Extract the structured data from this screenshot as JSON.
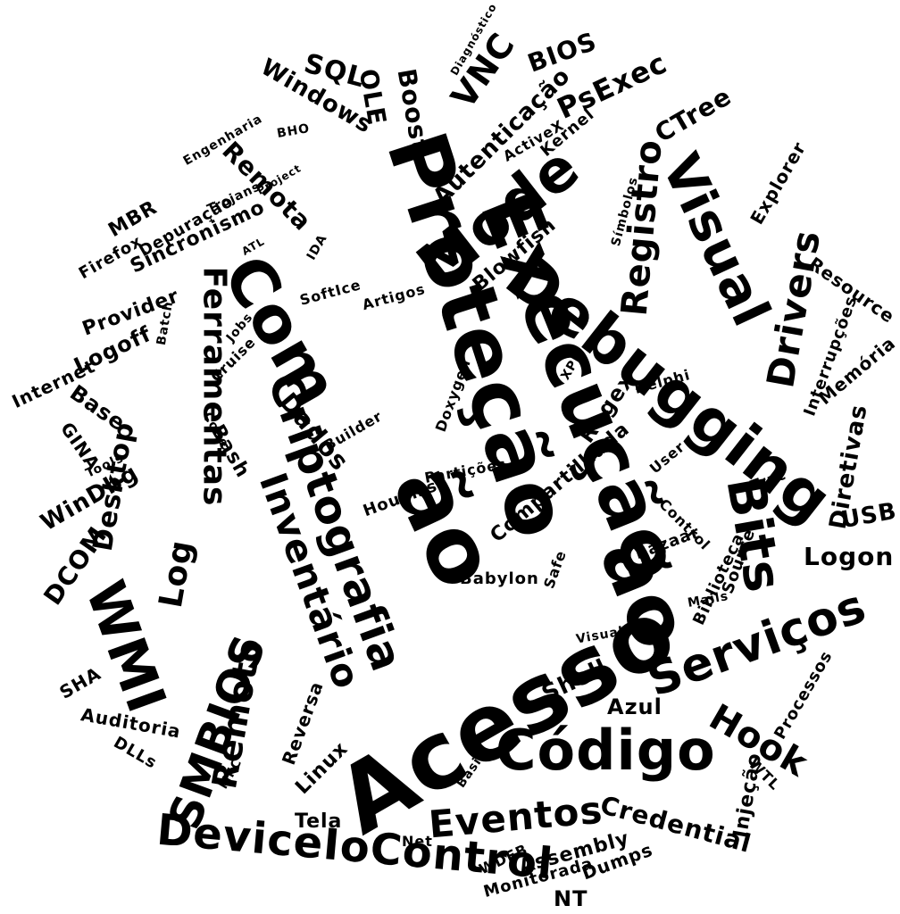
{
  "colors": {
    "background": "#ffffff",
    "text": "#000000"
  },
  "words": [
    {
      "text": "Acesso",
      "size": 104,
      "angle": -30
    },
    {
      "text": "Proteção",
      "size": 92,
      "angle": 72
    },
    {
      "text": "Execução",
      "size": 86,
      "angle": 68
    },
    {
      "text": "Debugging",
      "size": 70,
      "angle": 38
    },
    {
      "text": "ão",
      "size": 100,
      "angle": 65
    },
    {
      "text": "ão",
      "size": 90,
      "angle": 68
    },
    {
      "text": "Código",
      "size": 62,
      "angle": 0
    },
    {
      "text": "Com",
      "size": 72,
      "angle": 60
    },
    {
      "text": "Criptografia",
      "size": 50,
      "angle": 70
    },
    {
      "text": "Mode",
      "size": 66,
      "angle": -38
    },
    {
      "text": "Visual",
      "size": 58,
      "angle": 65
    },
    {
      "text": "Serviços",
      "size": 52,
      "angle": -20
    },
    {
      "text": "DeviceIoControl",
      "size": 48,
      "angle": 5
    },
    {
      "text": "WMI",
      "size": 60,
      "angle": 70
    },
    {
      "text": "Bits",
      "size": 58,
      "angle": 80
    },
    {
      "text": "Inventário",
      "size": 42,
      "angle": 70
    },
    {
      "text": "Ferramentas",
      "size": 36,
      "angle": 90
    },
    {
      "text": "SMBIOS",
      "size": 50,
      "angle": -70
    },
    {
      "text": "Drivers",
      "size": 42,
      "angle": -80
    },
    {
      "text": "Registro",
      "size": 40,
      "angle": -85
    },
    {
      "text": "Eventos",
      "size": 42,
      "angle": -5
    },
    {
      "text": "Hook",
      "size": 40,
      "angle": 30
    },
    {
      "text": "Remoto",
      "size": 38,
      "angle": -80
    },
    {
      "text": "Desktop",
      "size": 30,
      "angle": -80
    },
    {
      "text": "Log",
      "size": 36,
      "angle": -80
    },
    {
      "text": "Remota",
      "size": 28,
      "angle": 45
    },
    {
      "text": "Logon",
      "size": 28,
      "angle": 0
    },
    {
      "text": "PsExec",
      "size": 32,
      "angle": -25
    },
    {
      "text": "VNC",
      "size": 38,
      "angle": -55
    },
    {
      "text": "Credential",
      "size": 28,
      "angle": 15
    },
    {
      "text": "Dados",
      "size": 28,
      "angle": 50
    },
    {
      "text": "CTree",
      "size": 28,
      "angle": -30
    },
    {
      "text": "Diretivas",
      "size": 26,
      "angle": -80
    },
    {
      "text": "Autenticação",
      "size": 26,
      "angle": -45
    },
    {
      "text": "Blowfish",
      "size": 22,
      "angle": -40
    },
    {
      "text": "Shell",
      "size": 26,
      "angle": -25
    },
    {
      "text": "Azul",
      "size": 24,
      "angle": 0
    },
    {
      "text": "Compartilhada",
      "size": 22,
      "angle": -40
    },
    {
      "text": "Regex",
      "size": 24,
      "angle": -55
    },
    {
      "text": "Bash",
      "size": 22,
      "angle": 60
    },
    {
      "text": "DCOM",
      "size": 28,
      "angle": -55
    },
    {
      "text": "WinDbg",
      "size": 26,
      "angle": -30
    },
    {
      "text": "SQL",
      "size": 30,
      "angle": 15
    },
    {
      "text": "BIOS",
      "size": 28,
      "angle": -20
    },
    {
      "text": "Windows",
      "size": 26,
      "angle": 30
    },
    {
      "text": "Boost",
      "size": 28,
      "angle": 80
    },
    {
      "text": "OLE",
      "size": 28,
      "angle": 80
    },
    {
      "text": "Sincronismo",
      "size": 22,
      "angle": -25
    },
    {
      "text": "Depuração",
      "size": 18,
      "angle": -30
    },
    {
      "text": "MBR",
      "size": 22,
      "angle": -30
    },
    {
      "text": "Firefox",
      "size": 18,
      "angle": -30
    },
    {
      "text": "Provider",
      "size": 22,
      "angle": -20
    },
    {
      "text": "Logoff",
      "size": 24,
      "angle": -25
    },
    {
      "text": "Internet",
      "size": 20,
      "angle": -25
    },
    {
      "text": "Base",
      "size": 24,
      "angle": 35
    },
    {
      "text": "GINA",
      "size": 20,
      "angle": 55
    },
    {
      "text": "USB",
      "size": 26,
      "angle": -10
    },
    {
      "text": "Memória",
      "size": 20,
      "angle": -40
    },
    {
      "text": "Interrupções",
      "size": 18,
      "angle": -70
    },
    {
      "text": "Resource",
      "size": 20,
      "angle": 35
    },
    {
      "text": "Explorer",
      "size": 20,
      "angle": -60
    },
    {
      "text": "Kernel",
      "size": 18,
      "angle": -40
    },
    {
      "text": "Auditoria",
      "size": 20,
      "angle": 10
    },
    {
      "text": "Linux",
      "size": 22,
      "angle": -45
    },
    {
      "text": "Reversa",
      "size": 20,
      "angle": -70
    },
    {
      "text": "Assembly",
      "size": 22,
      "angle": -15
    },
    {
      "text": "Dumps",
      "size": 20,
      "angle": -20
    },
    {
      "text": "Monitorada",
      "size": 18,
      "angle": -15
    },
    {
      "text": "NT",
      "size": 24,
      "angle": 0
    },
    {
      "text": "Tela",
      "size": 22,
      "angle": 0
    },
    {
      "text": "Net",
      "size": 16,
      "angle": 0
    },
    {
      "text": "WDEB",
      "size": 16,
      "angle": -25
    },
    {
      "text": "Injeção",
      "size": 22,
      "angle": -80
    },
    {
      "text": "WTL",
      "size": 16,
      "angle": 45
    },
    {
      "text": "Processos",
      "size": 18,
      "angle": -60
    },
    {
      "text": "SHA",
      "size": 20,
      "angle": -30
    },
    {
      "text": "DLLs",
      "size": 18,
      "angle": 30
    },
    {
      "text": "Source",
      "size": 18,
      "angle": -70
    },
    {
      "text": "Biblioteca",
      "size": 18,
      "angle": -65
    },
    {
      "text": "Houaiss",
      "size": 18,
      "angle": -20
    },
    {
      "text": "Babylon",
      "size": 18,
      "angle": 0
    },
    {
      "text": "Partições",
      "size": 16,
      "angle": -10
    },
    {
      "text": "Bazaar",
      "size": 18,
      "angle": -20
    },
    {
      "text": "Control",
      "size": 16,
      "angle": 45
    },
    {
      "text": "Safe",
      "size": 16,
      "angle": -70
    },
    {
      "text": "Trac",
      "size": 16,
      "angle": -20
    },
    {
      "text": "User",
      "size": 16,
      "angle": -40
    },
    {
      "text": "Delphi",
      "size": 16,
      "angle": -15
    },
    {
      "text": "Builder",
      "size": 16,
      "angle": -30
    },
    {
      "text": "Doxygen",
      "size": 16,
      "angle": -70
    },
    {
      "text": "Artigos",
      "size": 16,
      "angle": -15
    },
    {
      "text": "SoftIce",
      "size": 16,
      "angle": -15
    },
    {
      "text": "IDA",
      "size": 14,
      "angle": -60
    },
    {
      "text": "Jobs",
      "size": 14,
      "angle": -50
    },
    {
      "text": "Cruise",
      "size": 16,
      "angle": -45
    },
    {
      "text": "Tools",
      "size": 14,
      "angle": -25
    },
    {
      "text": "Batch",
      "size": 14,
      "angle": -80
    },
    {
      "text": "Engenharia",
      "size": 14,
      "angle": -30
    },
    {
      "text": "Trojans",
      "size": 14,
      "angle": -25
    },
    {
      "text": "Símbolos",
      "size": 14,
      "angle": -75
    },
    {
      "text": "Diagnóstico",
      "size": 12,
      "angle": -60
    },
    {
      "text": "Project",
      "size": 12,
      "angle": -30
    },
    {
      "text": "ActiveX",
      "size": 16,
      "angle": -30
    },
    {
      "text": "ATL",
      "size": 12,
      "angle": -30
    },
    {
      "text": "BHO",
      "size": 14,
      "angle": -10
    },
    {
      "text": "Mails",
      "size": 14,
      "angle": -10
    },
    {
      "text": "XPI",
      "size": 14,
      "angle": -60
    },
    {
      "text": "MFC",
      "size": 14,
      "angle": -60
    },
    {
      "text": "Code",
      "size": 14,
      "angle": 60
    },
    {
      "text": "Basic",
      "size": 14,
      "angle": -55
    },
    {
      "text": "Visual",
      "size": 14,
      "angle": -10
    }
  ]
}
